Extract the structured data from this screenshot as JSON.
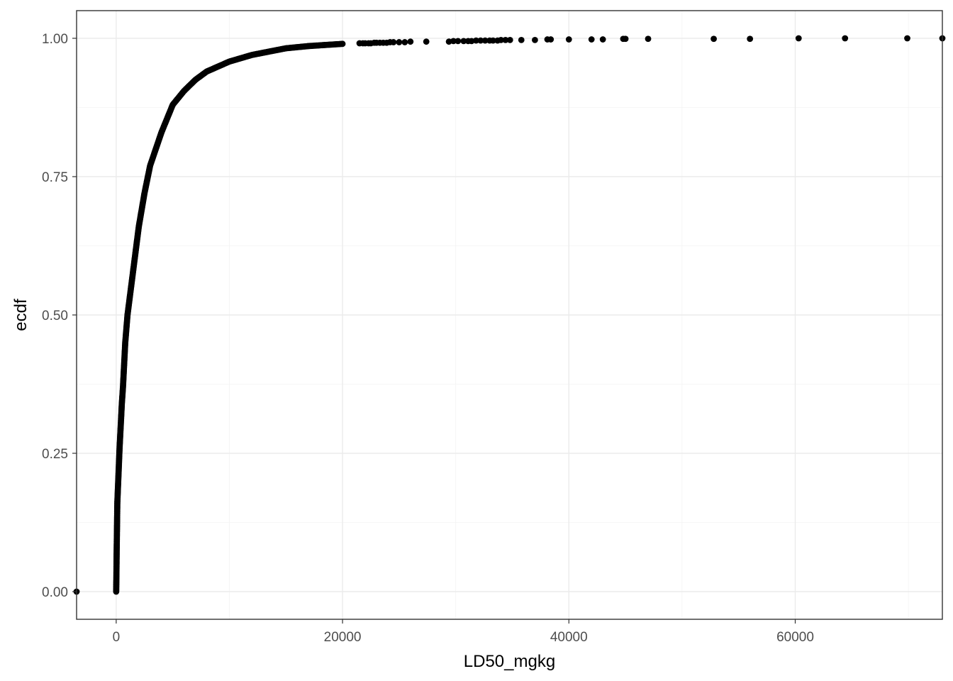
{
  "chart_data": {
    "type": "scatter",
    "title": "",
    "xlabel": "LD50_mgkg",
    "ylabel": "ecdf",
    "xlim": [
      -3500,
      73000
    ],
    "ylim": [
      -0.05,
      1.05
    ],
    "x_ticks": [
      0,
      20000,
      40000,
      60000
    ],
    "x_tick_labels": [
      "0",
      "20000",
      "40000",
      "60000"
    ],
    "y_ticks": [
      0,
      0.25,
      0.5,
      0.75,
      1
    ],
    "y_tick_labels": [
      "0.00",
      "0.25",
      "0.50",
      "0.75",
      "1.00"
    ],
    "grid": true,
    "point_color": "#000000",
    "curve_knots": [
      [
        0,
        0.0
      ],
      [
        20,
        0.03
      ],
      [
        40,
        0.07
      ],
      [
        60,
        0.1
      ],
      [
        80,
        0.13
      ],
      [
        100,
        0.16
      ],
      [
        200,
        0.21
      ],
      [
        300,
        0.26
      ],
      [
        400,
        0.3
      ],
      [
        500,
        0.34
      ],
      [
        600,
        0.37
      ],
      [
        700,
        0.41
      ],
      [
        800,
        0.45
      ],
      [
        1000,
        0.5
      ],
      [
        1500,
        0.58
      ],
      [
        2000,
        0.66
      ],
      [
        2500,
        0.72
      ],
      [
        3000,
        0.77
      ],
      [
        4000,
        0.83
      ],
      [
        5000,
        0.88
      ],
      [
        6000,
        0.905
      ],
      [
        7000,
        0.925
      ],
      [
        8000,
        0.94
      ],
      [
        10000,
        0.958
      ],
      [
        12000,
        0.97
      ],
      [
        15000,
        0.982
      ],
      [
        17000,
        0.986
      ],
      [
        20000,
        0.99
      ]
    ],
    "tail_points": [
      [
        21500,
        0.991
      ],
      [
        21800,
        0.991
      ],
      [
        22000,
        0.991
      ],
      [
        22300,
        0.991
      ],
      [
        22500,
        0.991
      ],
      [
        22800,
        0.992
      ],
      [
        23000,
        0.992
      ],
      [
        23300,
        0.992
      ],
      [
        23600,
        0.992
      ],
      [
        23900,
        0.992
      ],
      [
        24200,
        0.993
      ],
      [
        24500,
        0.993
      ],
      [
        25000,
        0.993
      ],
      [
        25500,
        0.993
      ],
      [
        26000,
        0.994
      ],
      [
        27400,
        0.994
      ],
      [
        29400,
        0.994
      ],
      [
        29800,
        0.995
      ],
      [
        30200,
        0.995
      ],
      [
        30700,
        0.995
      ],
      [
        31100,
        0.995
      ],
      [
        31400,
        0.995
      ],
      [
        31800,
        0.996
      ],
      [
        32200,
        0.996
      ],
      [
        32600,
        0.996
      ],
      [
        33000,
        0.996
      ],
      [
        33300,
        0.996
      ],
      [
        33700,
        0.996
      ],
      [
        34000,
        0.997
      ],
      [
        34400,
        0.997
      ],
      [
        34800,
        0.997
      ],
      [
        35800,
        0.997
      ],
      [
        37000,
        0.997
      ],
      [
        38100,
        0.998
      ],
      [
        38400,
        0.998
      ],
      [
        40000,
        0.998
      ],
      [
        42000,
        0.998
      ],
      [
        43000,
        0.998
      ],
      [
        44800,
        0.999
      ],
      [
        45000,
        0.999
      ],
      [
        47000,
        0.999
      ],
      [
        52800,
        0.999
      ],
      [
        56000,
        0.999
      ],
      [
        60300,
        1.0
      ],
      [
        64400,
        1.0
      ],
      [
        69900,
        1.0
      ],
      [
        73000,
        1.0
      ]
    ],
    "outlier_points": [
      [
        -3500,
        0.0
      ]
    ]
  }
}
